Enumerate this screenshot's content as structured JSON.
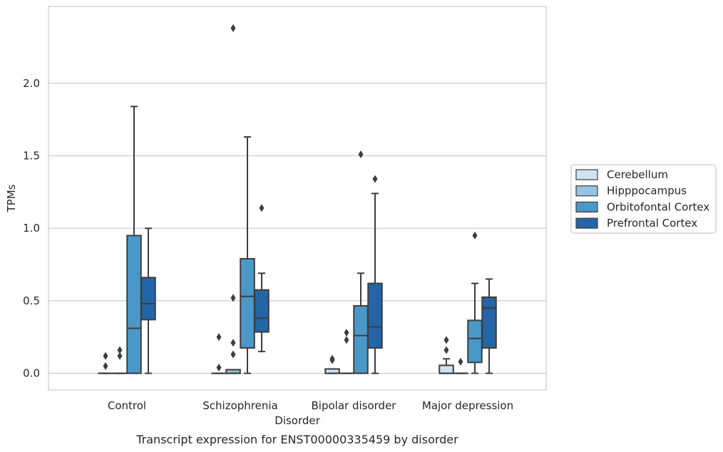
{
  "chart_data": {
    "type": "box",
    "title": "",
    "caption": "Transcript expression for ENST00000335459 by disorder",
    "xlabel": "Disorder",
    "ylabel": "TPMs",
    "ylim": [
      -0.115,
      2.53
    ],
    "yticks": [
      0.0,
      0.5,
      1.0,
      1.5,
      2.0
    ],
    "ytick_labels": [
      "0.0",
      "0.5",
      "1.0",
      "1.5",
      "2.0"
    ],
    "grid": true,
    "legend_position": "right, outside",
    "categories": [
      "Control",
      "Schizophrenia",
      "Bipolar disorder",
      "Major depression"
    ],
    "series": [
      {
        "name": "Cerebellum",
        "color": "#d0e1f2",
        "boxes": [
          {
            "q1": 0,
            "median": 0,
            "q3": 0,
            "whisker_low": 0,
            "whisker_high": 0,
            "outliers": [
              0.05,
              0.12
            ]
          },
          {
            "q1": 0,
            "median": 0,
            "q3": 0,
            "whisker_low": 0,
            "whisker_high": 0,
            "outliers": [
              0.04,
              0.25
            ]
          },
          {
            "q1": 0,
            "median": 0,
            "q3": 0.03,
            "whisker_low": 0,
            "whisker_high": 0.03,
            "outliers": [
              0.09,
              0.1
            ]
          },
          {
            "q1": 0,
            "median": 0,
            "q3": 0.055,
            "whisker_low": 0,
            "whisker_high": 0.1,
            "outliers": [
              0.16,
              0.23
            ]
          }
        ]
      },
      {
        "name": "Hipppocampus",
        "color": "#94c4df",
        "boxes": [
          {
            "q1": 0,
            "median": 0,
            "q3": 0,
            "whisker_low": 0,
            "whisker_high": 0,
            "outliers": [
              0.12,
              0.16
            ]
          },
          {
            "q1": 0,
            "median": 0,
            "q3": 0.025,
            "whisker_low": 0,
            "whisker_high": 0.025,
            "outliers": [
              0.13,
              0.21,
              0.52,
              2.38
            ]
          },
          {
            "q1": 0,
            "median": 0,
            "q3": 0,
            "whisker_low": 0,
            "whisker_high": 0,
            "outliers": [
              0.23,
              0.28
            ]
          },
          {
            "q1": 0,
            "median": 0,
            "q3": 0,
            "whisker_low": 0,
            "whisker_high": 0,
            "outliers": [
              0.08
            ]
          }
        ]
      },
      {
        "name": "Orbitofontal Cortex",
        "color": "#4a98c9",
        "boxes": [
          {
            "q1": 0,
            "median": 0.31,
            "q3": 0.95,
            "whisker_low": 0,
            "whisker_high": 1.84,
            "outliers": []
          },
          {
            "q1": 0.175,
            "median": 0.53,
            "q3": 0.79,
            "whisker_low": 0,
            "whisker_high": 1.63,
            "outliers": []
          },
          {
            "q1": 0,
            "median": 0.26,
            "q3": 0.465,
            "whisker_low": 0,
            "whisker_high": 0.69,
            "outliers": [
              1.51
            ]
          },
          {
            "q1": 0.075,
            "median": 0.24,
            "q3": 0.365,
            "whisker_low": 0,
            "whisker_high": 0.62,
            "outliers": [
              0.95
            ]
          }
        ]
      },
      {
        "name": "Prefrontal Cortex",
        "color": "#2465a8",
        "boxes": [
          {
            "q1": 0.37,
            "median": 0.48,
            "q3": 0.66,
            "whisker_low": 0,
            "whisker_high": 1.0,
            "outliers": []
          },
          {
            "q1": 0.285,
            "median": 0.38,
            "q3": 0.575,
            "whisker_low": 0.15,
            "whisker_high": 0.69,
            "outliers": [
              1.14
            ]
          },
          {
            "q1": 0.175,
            "median": 0.32,
            "q3": 0.62,
            "whisker_low": 0,
            "whisker_high": 1.24,
            "outliers": [
              1.34
            ]
          },
          {
            "q1": 0.175,
            "median": 0.45,
            "q3": 0.525,
            "whisker_low": 0,
            "whisker_high": 0.65,
            "outliers": []
          }
        ]
      }
    ]
  }
}
